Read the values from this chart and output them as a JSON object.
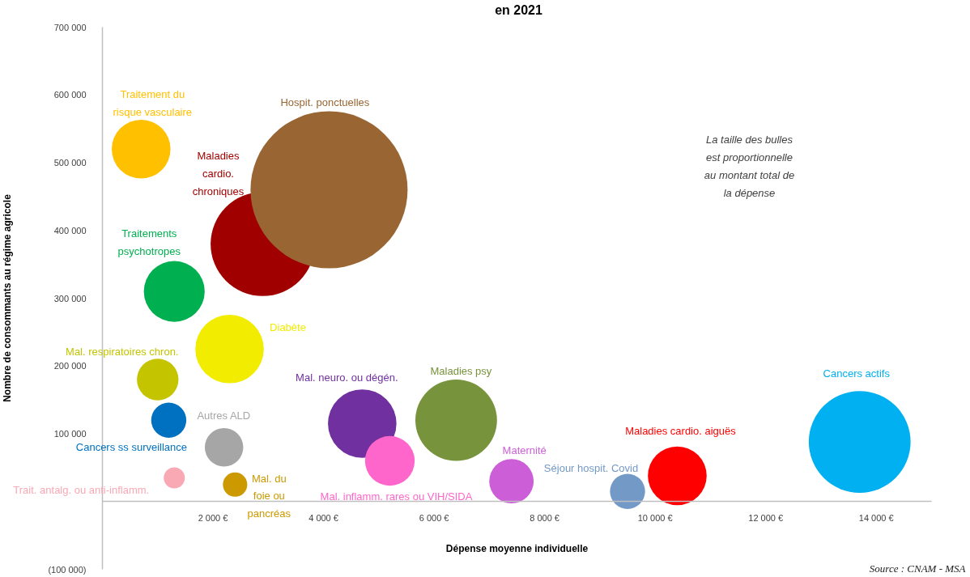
{
  "chart_data": {
    "type": "bubble",
    "title": "en 2021",
    "xlabel": "Dépense moyenne individuelle",
    "ylabel": "Nombre de consommants au régime agricole",
    "xlim": [
      0,
      15000
    ],
    "ylim": [
      -100000,
      700000
    ],
    "xticks": [
      {
        "value": 2000,
        "label": "2 000 €"
      },
      {
        "value": 4000,
        "label": "4 000 €"
      },
      {
        "value": 6000,
        "label": "6 000 €"
      },
      {
        "value": 8000,
        "label": "8 000 €"
      },
      {
        "value": 10000,
        "label": "10 000 €"
      },
      {
        "value": 12000,
        "label": "12 000 €"
      },
      {
        "value": 14000,
        "label": "14 000 €"
      }
    ],
    "yticks": [
      {
        "value": -100000,
        "label": "(100 000)"
      },
      {
        "value": 100000,
        "label": "100 000"
      },
      {
        "value": 200000,
        "label": "200 000"
      },
      {
        "value": 300000,
        "label": "300 000"
      },
      {
        "value": 400000,
        "label": "400 000"
      },
      {
        "value": 500000,
        "label": "500 000"
      },
      {
        "value": 600000,
        "label": "600 000"
      },
      {
        "value": 700000,
        "label": "700 000"
      }
    ],
    "marker": "circle",
    "annotations": [
      "La taille des bulles\nest proportionnelle\nau montant total de\nla dépense",
      "Source : CNAM - MSA"
    ],
    "series": [
      {
        "name": "Traitement du\nrisque vasculaire",
        "color": "#ffc000",
        "x": [
          700
        ],
        "values": [
          520000
        ],
        "sizes": [
          0.14
        ]
      },
      {
        "name": "Maladies\ncardio.\nchroniques",
        "color": "#a00000",
        "x": [
          2900
        ],
        "values": [
          380000
        ],
        "sizes": [
          0.44
        ]
      },
      {
        "name": "Hospit. ponctuelles",
        "color": "#996633",
        "x": [
          4100
        ],
        "values": [
          460000
        ],
        "sizes": [
          1
        ]
      },
      {
        "name": "Traitements\npsychotropes",
        "color": "#00b050",
        "x": [
          1300
        ],
        "values": [
          310000
        ],
        "sizes": [
          0.15
        ]
      },
      {
        "name": "Diabète",
        "color": "#f2ec00",
        "x": [
          2300
        ],
        "values": [
          225000
        ],
        "sizes": [
          0.19
        ]
      },
      {
        "name": "Mal. respiratoires chron.",
        "color": "#c4c400",
        "x": [
          1000
        ],
        "values": [
          180000
        ],
        "sizes": [
          0.07
        ]
      },
      {
        "name": "Cancers ss surveillance",
        "color": "#0070c0",
        "x": [
          1200
        ],
        "values": [
          120000
        ],
        "sizes": [
          0.05
        ]
      },
      {
        "name": "Autres ALD",
        "color": "#a6a6a6",
        "x": [
          2200
        ],
        "values": [
          80000
        ],
        "sizes": [
          0.06
        ]
      },
      {
        "name": "Trait. antalg. ou anti-inflamm.",
        "color": "#f9a9b4",
        "x": [
          1300
        ],
        "values": [
          35000
        ],
        "sizes": [
          0.018
        ]
      },
      {
        "name": "Mal. du\nfoie ou\npancréas",
        "color": "#cc9900",
        "x": [
          2400
        ],
        "values": [
          25000
        ],
        "sizes": [
          0.024
        ]
      },
      {
        "name": "Mal. neuro. ou dégén.",
        "color": "#7030a0",
        "x": [
          4700
        ],
        "values": [
          115000
        ],
        "sizes": [
          0.19
        ]
      },
      {
        "name": "Mal. inflamm. rares ou VIH/SIDA",
        "color": "#ff66cc",
        "x": [
          5200
        ],
        "values": [
          60000
        ],
        "sizes": [
          0.1
        ]
      },
      {
        "name": "Maladies psy",
        "color": "#77933c",
        "x": [
          6400
        ],
        "values": [
          120000
        ],
        "sizes": [
          0.27
        ]
      },
      {
        "name": "Maternité",
        "color": "#cc5fd8",
        "x": [
          7400
        ],
        "values": [
          30000
        ],
        "sizes": [
          0.08
        ]
      },
      {
        "name": "Séjour hospit. Covid",
        "color": "#7399c6",
        "x": [
          9500
        ],
        "values": [
          15000
        ],
        "sizes": [
          0.05
        ]
      },
      {
        "name": "Maladies cardio. aiguës",
        "color": "#ff0000",
        "x": [
          10400
        ],
        "values": [
          38000
        ],
        "sizes": [
          0.14
        ]
      },
      {
        "name": "Cancers actifs",
        "color": "#00b0f0",
        "x": [
          13700
        ],
        "values": [
          88000
        ],
        "sizes": [
          0.42
        ]
      }
    ]
  }
}
